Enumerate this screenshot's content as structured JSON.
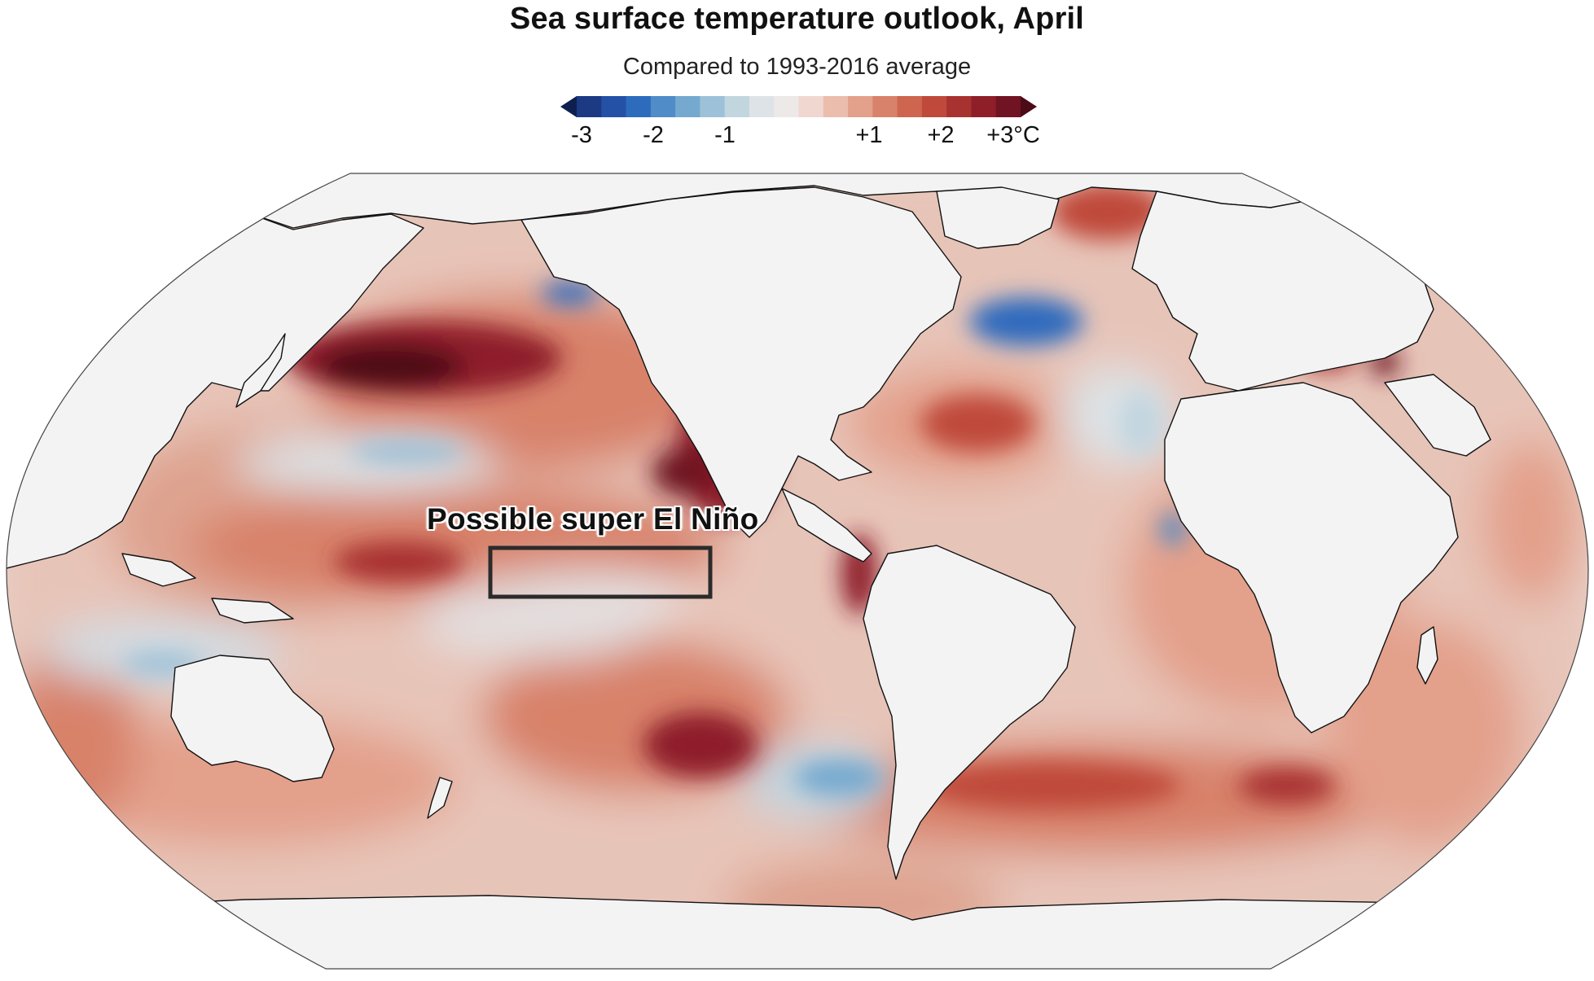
{
  "title": "Sea surface temperature outlook, April",
  "subtitle": "Compared to 1993-2016 average",
  "legend": {
    "ticks": [
      "-3",
      "-2",
      "-1",
      "+1",
      "+2",
      "+3°C"
    ],
    "tick_values": [
      -3,
      -2,
      -1,
      1,
      2,
      3
    ],
    "range": [
      -3,
      3
    ],
    "colors": [
      "#0d1f4e",
      "#1b3a83",
      "#2451a6",
      "#2d6bbd",
      "#4f8cc8",
      "#75a9cf",
      "#9dc1d8",
      "#c2d6e0",
      "#dde3e6",
      "#ece9e8",
      "#f0d7d0",
      "#ebbdad",
      "#e3a08b",
      "#d8826b",
      "#cd654f",
      "#bf4a3b",
      "#a83230",
      "#8e1f29",
      "#701322",
      "#4d0a17"
    ]
  },
  "annotation": {
    "label": "Possible super El Niño"
  },
  "colors": {
    "land": "#f3f3f3",
    "coastline": "#111111",
    "ocean_neutral": "#ece9e8",
    "ocean_warm": "#d8826b",
    "ocean_hot": "#701322",
    "ocean_cool": "#75a9cf",
    "box_stroke": "#2b2b2b"
  }
}
